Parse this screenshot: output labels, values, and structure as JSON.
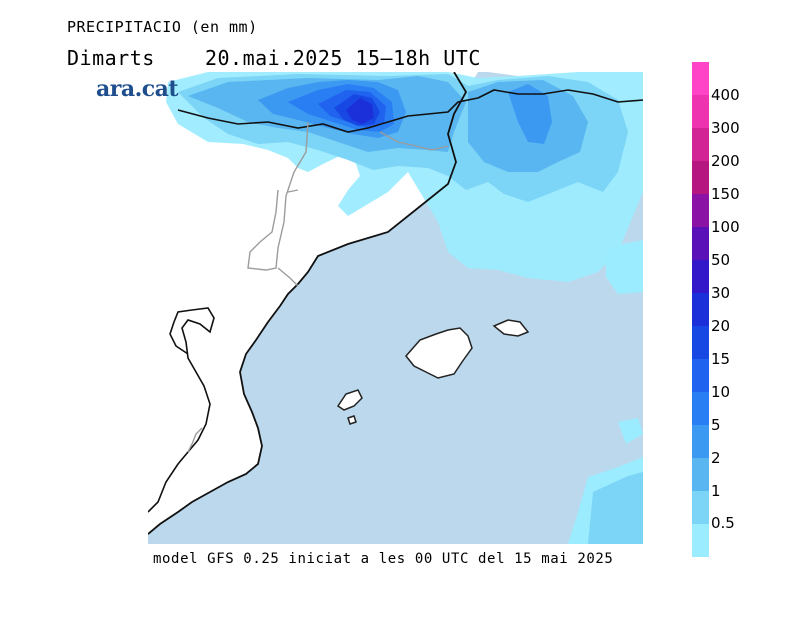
{
  "header": {
    "title": "PRECIPITACIO (en mm)",
    "day": "Dimarts",
    "datetime": "20.mai.2025 15–18h UTC",
    "brand": "ara.cat"
  },
  "footer": {
    "model_note": "model GFS 0.25 iniciat a les 00 UTC del 15 mai 2025"
  },
  "legend": {
    "colors": [
      "#ff44c8",
      "#ee33b0",
      "#d22495",
      "#b5167f",
      "#8a12a4",
      "#5a12b8",
      "#3218c8",
      "#1b30d8",
      "#1848e4",
      "#1f63ee",
      "#2a7ef4",
      "#3c99f2",
      "#59b6f0",
      "#7cd4f6",
      "#9cecff"
    ],
    "labels": [
      "400",
      "300",
      "200",
      "150",
      "100",
      "50",
      "30",
      "20",
      "15",
      "10",
      "5",
      "2",
      "1",
      "0.5"
    ]
  },
  "map": {
    "sea_color": "#bcd8ec",
    "land_color": "#ffffff"
  }
}
